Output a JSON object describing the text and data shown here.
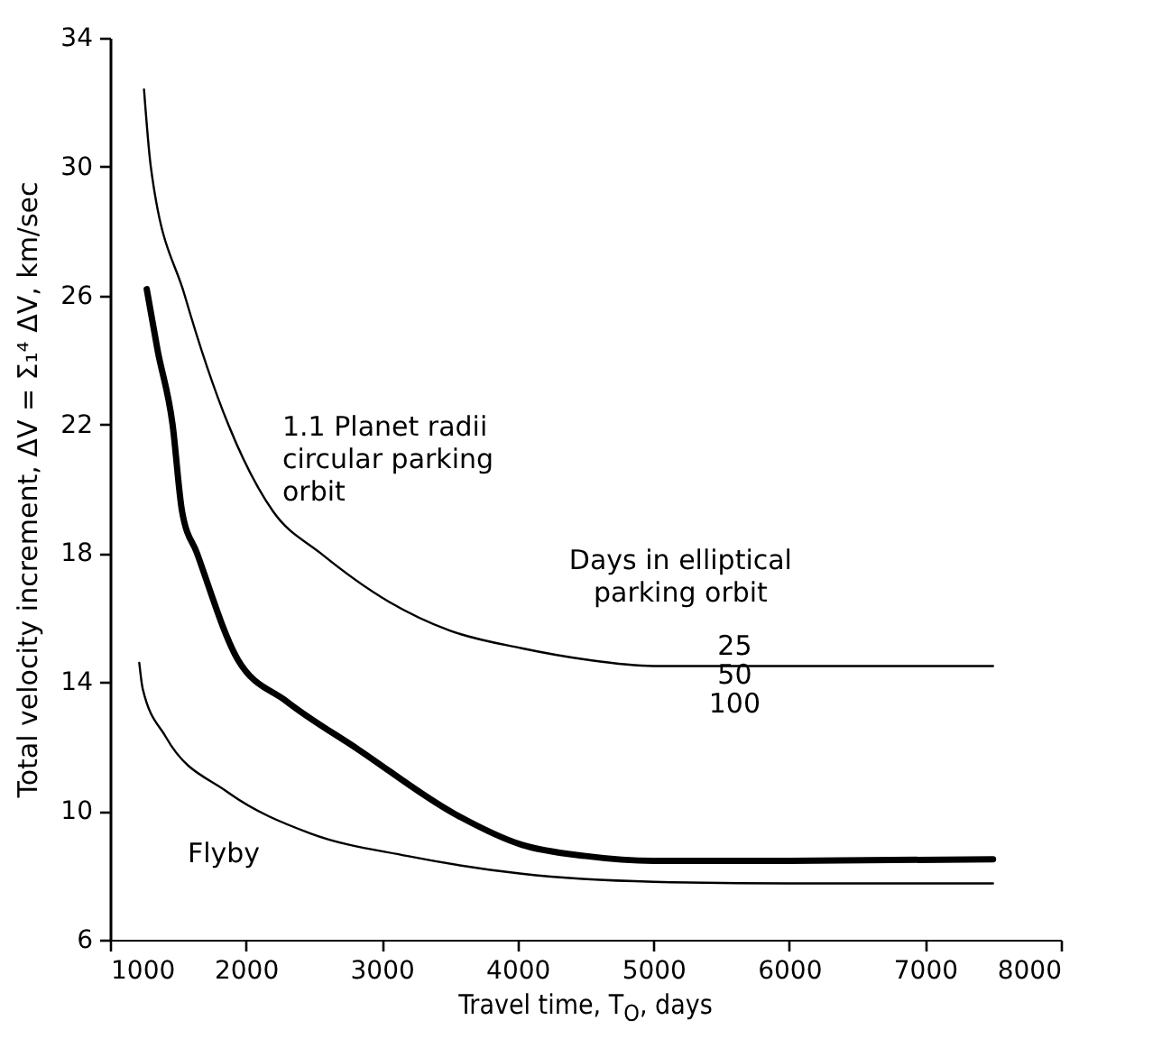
{
  "chart_data": {
    "type": "line",
    "xlabel": "Travel time, T$_{O}$, days",
    "ylabel": "Total velocity increment, ΔV = Σ₁⁴ ΔV, km/sec",
    "xlim": [
      1000,
      8000
    ],
    "xticks": [
      1000,
      2000,
      3000,
      4000,
      5000,
      6000,
      7000,
      8000
    ],
    "ylim": [
      6,
      34
    ],
    "yticks": [
      6,
      10,
      14,
      18,
      22,
      26,
      30,
      34
    ],
    "grid": false,
    "marker": "none",
    "line_style": "solid",
    "annotations": [
      "Days in elliptical parking orbit",
      "25",
      "50",
      "100"
    ],
    "series": [
      {
        "name": "1.1 Planet radii circular parking orbit",
        "color": "#000000",
        "x": [
          1250,
          1300,
          1550,
          1870,
          2200,
          2550,
          3050,
          3500,
          4030,
          4500,
          5000,
          6000,
          7500
        ],
        "values": [
          32.4,
          30,
          26,
          22,
          19.3,
          18,
          16.5,
          15.6,
          15.05,
          14.7,
          14.5,
          14.5,
          14.5
        ]
      },
      {
        "color": "#000000",
        "x": [
          1270,
          1350,
          1460,
          1530,
          1640,
          1940,
          2300,
          2830,
          3540,
          4030,
          4500,
          5000,
          6000,
          7500
        ],
        "values": [
          26.2,
          24.3,
          22,
          19.3,
          18,
          14.7,
          13.4,
          11.9,
          9.9,
          8.95,
          8.6,
          8.45,
          8.45,
          8.5
        ]
      },
      {
        "name": "Flyby",
        "color": "#000000",
        "x": [
          1215,
          1240,
          1410,
          1860,
          2475,
          3190,
          4030,
          5000,
          6000,
          7500
        ],
        "values": [
          14.6,
          13.8,
          12.3,
          10.6,
          9.3,
          8.6,
          8.05,
          7.8,
          7.75,
          7.75
        ]
      }
    ]
  }
}
